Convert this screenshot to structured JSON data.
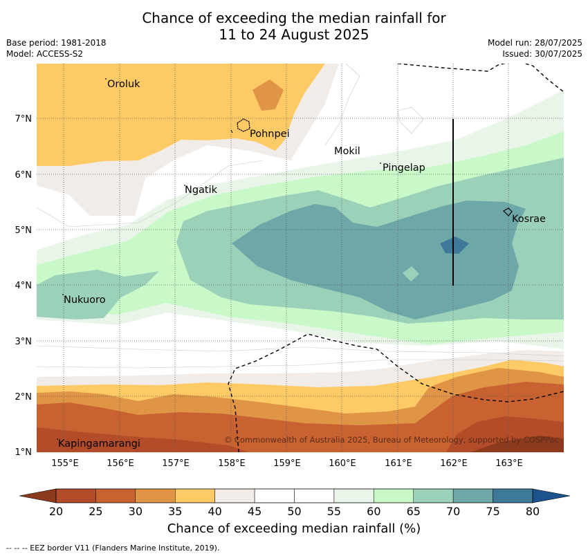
{
  "header": {
    "title_line1": "Chance of exceeding the median rainfall for",
    "title_line2": "11 to 24 August 2025",
    "base_period": "Base period: 1981-2018",
    "model": "Model: ACCESS-S2",
    "model_run": "Model run: 28/07/2025",
    "issued": "Issued: 30/07/2025"
  },
  "map": {
    "x_ticks": [
      "155°E",
      "156°E",
      "157°E",
      "158°E",
      "159°E",
      "160°E",
      "161°E",
      "162°E",
      "163°E"
    ],
    "y_ticks": [
      "7°N",
      "6°N",
      "5°N",
      "4°N",
      "3°N",
      "2°N",
      "1°N"
    ],
    "places": [
      {
        "name": "Oroluk"
      },
      {
        "name": "Pohnpei"
      },
      {
        "name": "Mokil"
      },
      {
        "name": "Pingelap"
      },
      {
        "name": "Ngatik"
      },
      {
        "name": "Kosrae"
      },
      {
        "name": "Nukuoro"
      },
      {
        "name": "Kapingamarangi"
      }
    ],
    "copyright": "© Commonwealth of Australia 2025, Bureau of Meteorology, supported by COSPPac"
  },
  "colorbar": {
    "ticks": [
      "20",
      "25",
      "30",
      "35",
      "40",
      "45",
      "50",
      "55",
      "60",
      "65",
      "70",
      "75",
      "80"
    ],
    "colors": [
      "#b34c28",
      "#c86331",
      "#e09446",
      "#fdca66",
      "#f1ece8",
      "#ffffff",
      "#ffffff",
      "#eaf5ea",
      "#caf9c9",
      "#9cd1b9",
      "#6ea7a8",
      "#3f7999"
    ],
    "low_color": "#8b3a1e",
    "high_color": "#1c538c",
    "title": "Chance of exceeding median rainfall (%)"
  },
  "footnote": "--  --  -- EEZ border V11 (Flanders Marine Institute, 2019)."
}
